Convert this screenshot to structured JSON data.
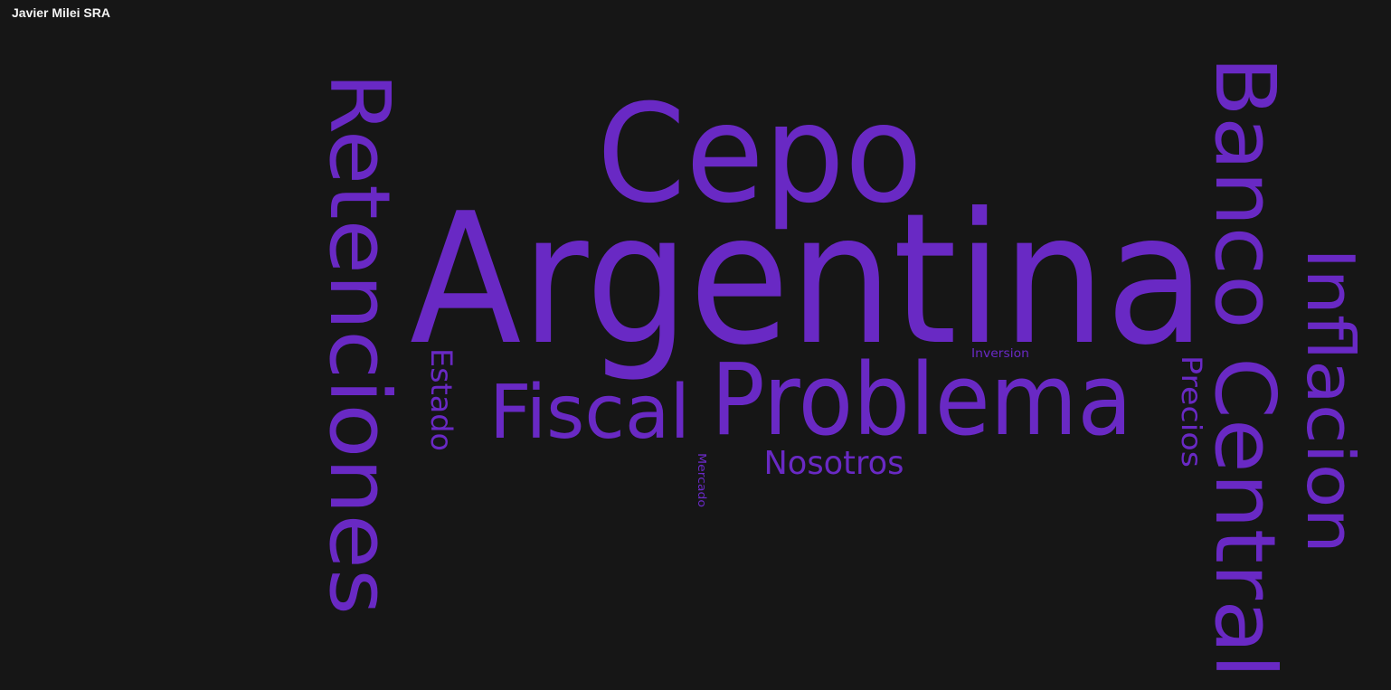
{
  "header": {
    "title": "Javier Milei SRA"
  },
  "cloud": {
    "color": "#6929c4",
    "words": [
      {
        "text": "Argentina"
      },
      {
        "text": "Cepo"
      },
      {
        "text": "Retenciones"
      },
      {
        "text": "Banco Central"
      },
      {
        "text": "Problema"
      },
      {
        "text": "Inflacion"
      },
      {
        "text": "Fiscal"
      },
      {
        "text": "Estado"
      },
      {
        "text": "Nosotros"
      },
      {
        "text": "Precios"
      },
      {
        "text": "Inversion"
      },
      {
        "text": "Mercado"
      }
    ]
  }
}
